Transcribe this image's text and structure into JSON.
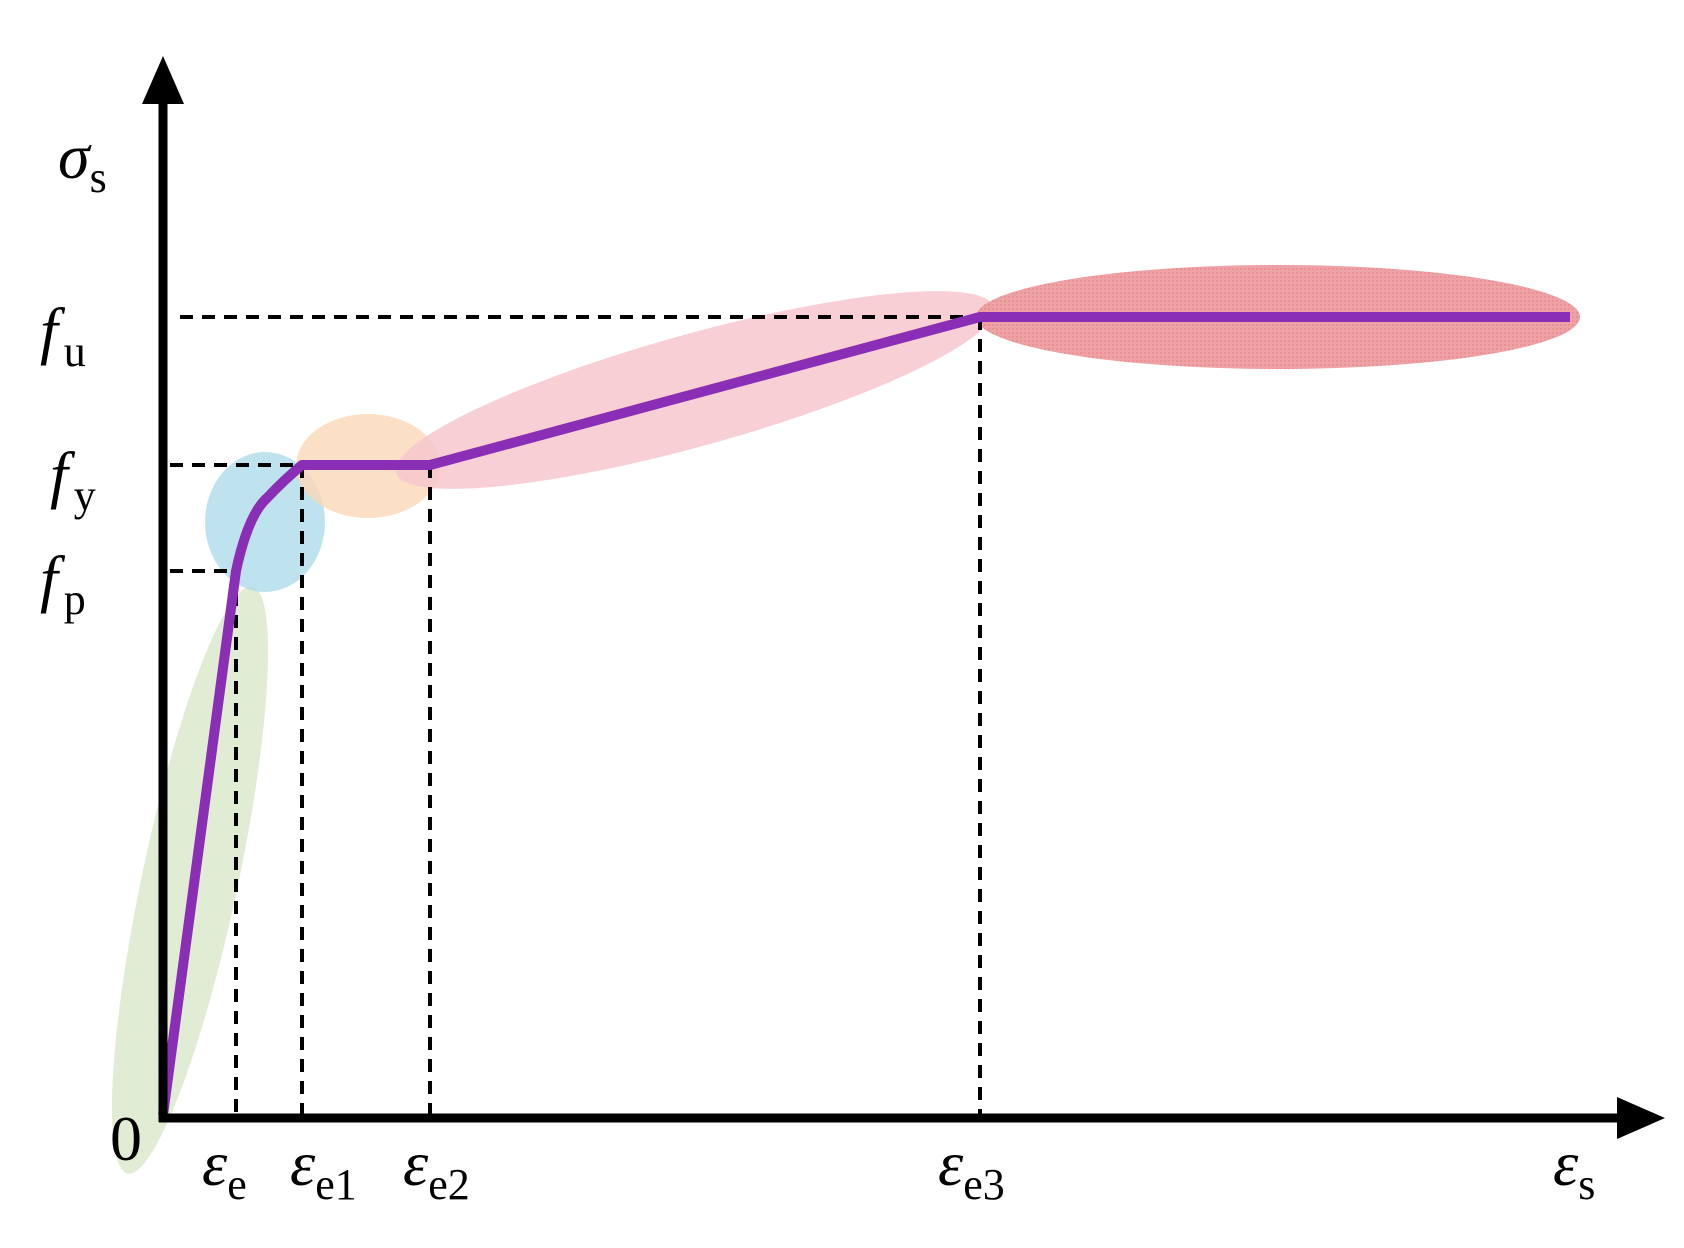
{
  "diagram": {
    "axes": {
      "y_label": {
        "main": "σ",
        "sub": "s"
      },
      "x_label": {
        "main": "ε",
        "sub": "s"
      },
      "origin": "0"
    },
    "y_ticks": [
      {
        "id": "fu",
        "main": "f",
        "sub": "u"
      },
      {
        "id": "fy",
        "main": "f",
        "sub": "y"
      },
      {
        "id": "fp",
        "main": "f",
        "sub": "p"
      }
    ],
    "x_ticks": [
      {
        "id": "ee",
        "main": "ε",
        "sub": "e"
      },
      {
        "id": "ee1",
        "main": "ε",
        "sub": "e1"
      },
      {
        "id": "ee2",
        "main": "ε",
        "sub": "e2"
      },
      {
        "id": "ee3",
        "main": "ε",
        "sub": "e3"
      }
    ],
    "colors": {
      "curve": "#8a2fb5",
      "axes": "#000000",
      "guides": "#000000",
      "zone_elastic": "#dce9cd",
      "zone_elastoplastic": "#a9d9e8",
      "zone_plateau": "#fbd8b8",
      "zone_hardening": "#f6c7cc",
      "zone_ultimate": "#ef9a9d"
    }
  }
}
